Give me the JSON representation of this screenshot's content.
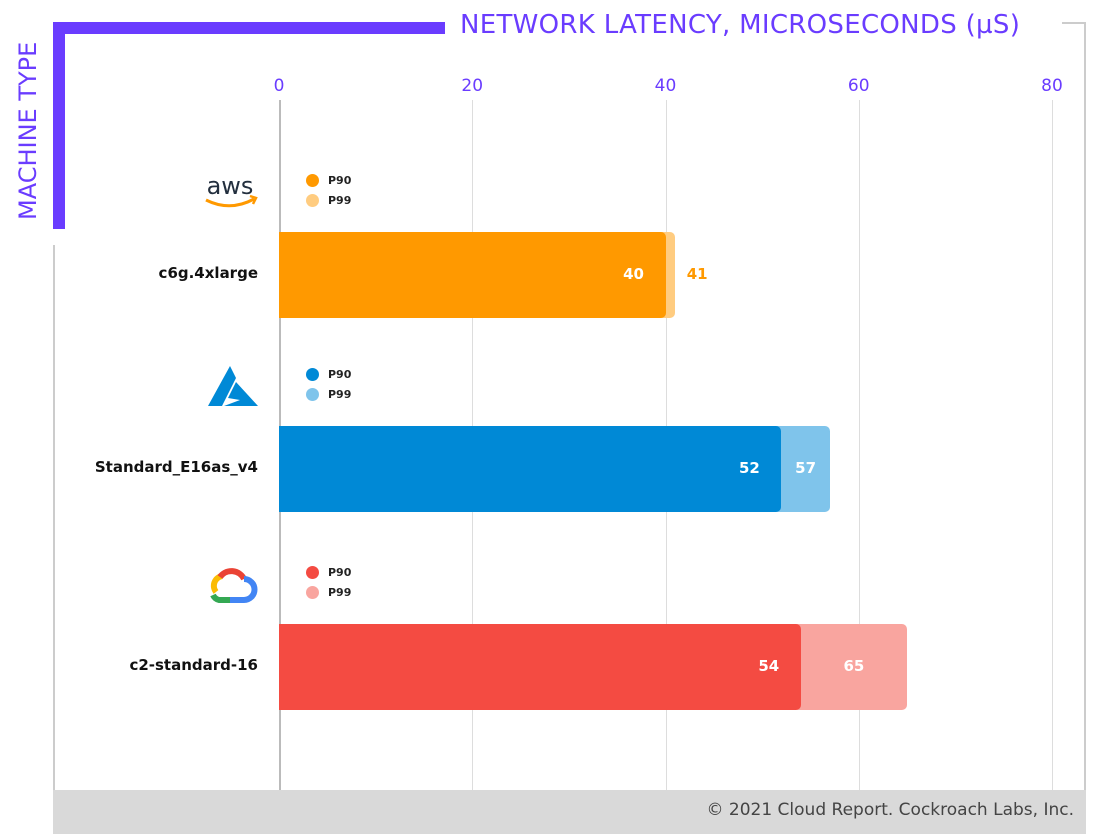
{
  "chart_data": {
    "type": "bar",
    "orientation": "horizontal",
    "title": "NETWORK LATENCY, MICROSECONDS (µS)",
    "ylabel": "MACHINE TYPE",
    "xlim": [
      0,
      80
    ],
    "xticks": [
      "0",
      "20",
      "40",
      "60",
      "80"
    ],
    "grid": true,
    "groups": [
      {
        "provider": "aws",
        "icon": "aws-logo",
        "category": "c6g.4xlarge",
        "p90": 40,
        "p99": 41,
        "colors": {
          "p90": "#ff9900",
          "p99": "#ffcc80"
        }
      },
      {
        "provider": "azure",
        "icon": "azure-logo",
        "category": "Standard_E16as_v4",
        "p90": 52,
        "p99": 57,
        "colors": {
          "p90": "#0089d6",
          "p99": "#7fc4eb"
        }
      },
      {
        "provider": "gcp",
        "icon": "google-cloud-logo",
        "category": "c2-standard-16",
        "p90": 54,
        "p99": 65,
        "colors": {
          "p90": "#f44b42",
          "p99": "#f9a59f"
        }
      }
    ],
    "legend": [
      "P90",
      "P99"
    ]
  },
  "footer": "© 2021 Cloud Report. Cockroach Labs, Inc.",
  "accent": "#6a3cff"
}
